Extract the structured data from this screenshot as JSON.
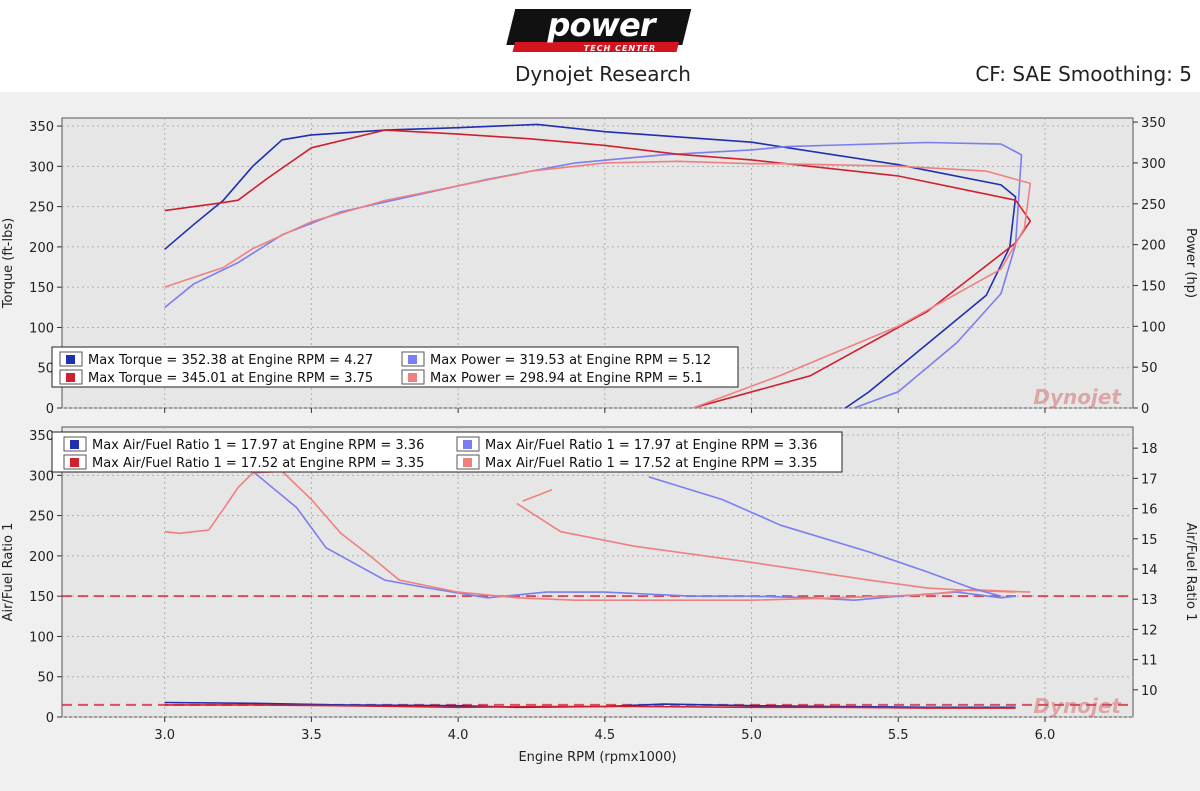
{
  "header": {
    "logo_main": "power",
    "logo_sub": "TECH CENTER",
    "title": "Dynojet Research",
    "cf": "CF: SAE Smoothing: 5",
    "watermark": "Dynojet"
  },
  "colors": {
    "dark_blue": "#1f2fb0",
    "light_blue": "#7a7ef0",
    "dark_red": "#d02030",
    "light_red": "#f08080",
    "panel": "#e6e6e6",
    "background": "#f0f0f0"
  },
  "chart_data": [
    {
      "type": "line",
      "xlabel": "Engine RPM (rpmx1000)",
      "ylabel": "Torque (ft-lbs)",
      "y2label": "Power (hp)",
      "xlim": [
        2.65,
        6.3
      ],
      "ylim": [
        0,
        360
      ],
      "y2lim": [
        0,
        355
      ],
      "xticks": [
        "3.0",
        "3.5",
        "4.0",
        "4.5",
        "5.0",
        "5.5",
        "6.0"
      ],
      "yticks": [
        "0",
        "50",
        "100",
        "150",
        "200",
        "250",
        "300",
        "350"
      ],
      "y2ticks": [
        "0",
        "50",
        "100",
        "150",
        "200",
        "250",
        "300",
        "350"
      ],
      "grid": true,
      "legend_position": "bottom-left",
      "legend": [
        {
          "label": "Max Torque = 352.38 at Engine RPM = 4.27",
          "color": "#1f2fb0"
        },
        {
          "label": "Max Power = 319.53 at Engine RPM = 5.12",
          "color": "#7a7ef0"
        },
        {
          "label": "Max Torque = 345.01 at Engine RPM = 3.75",
          "color": "#d02030"
        },
        {
          "label": "Max Power = 298.94 at Engine RPM = 5.1",
          "color": "#f08080"
        }
      ],
      "series": [
        {
          "axis": "left",
          "color": "#1f2fb0",
          "x": [
            3.0,
            3.1,
            3.2,
            3.3,
            3.4,
            3.5,
            3.75,
            4.0,
            4.27,
            4.5,
            5.0,
            5.5,
            5.85,
            5.9,
            5.88,
            5.8,
            5.6,
            5.4,
            5.32
          ],
          "y": [
            197,
            228,
            258,
            300,
            333,
            339,
            345,
            348,
            352,
            343,
            330,
            302,
            277,
            262,
            200,
            140,
            80,
            20,
            0
          ]
        },
        {
          "axis": "right",
          "color": "#7a7ef0",
          "x": [
            3.0,
            3.1,
            3.25,
            3.4,
            3.6,
            3.85,
            4.1,
            4.4,
            4.7,
            5.0,
            5.12,
            5.3,
            5.6,
            5.85,
            5.92,
            5.9,
            5.85,
            5.7,
            5.5,
            5.35
          ],
          "y": [
            123,
            152,
            178,
            212,
            240,
            260,
            280,
            300,
            310,
            316,
            320,
            322,
            325,
            323,
            310,
            200,
            140,
            80,
            20,
            0
          ]
        },
        {
          "axis": "left",
          "color": "#d02030",
          "x": [
            3.0,
            3.1,
            3.2,
            3.25,
            3.35,
            3.5,
            3.75,
            4.0,
            4.25,
            4.5,
            4.75,
            5.0,
            5.5,
            5.9,
            5.95,
            5.9,
            5.6,
            5.2,
            4.8
          ],
          "y": [
            245,
            250,
            255,
            258,
            285,
            323,
            345,
            340,
            334,
            326,
            315,
            308,
            288,
            258,
            232,
            205,
            120,
            40,
            0
          ]
        },
        {
          "axis": "right",
          "color": "#f08080",
          "x": [
            3.0,
            3.1,
            3.2,
            3.3,
            3.5,
            3.75,
            4.0,
            4.25,
            4.5,
            4.75,
            5.0,
            5.1,
            5.5,
            5.8,
            5.95,
            5.93,
            5.85,
            5.5,
            5.1,
            4.8
          ],
          "y": [
            148,
            160,
            172,
            195,
            228,
            254,
            272,
            290,
            300,
            302,
            299,
            299,
            296,
            290,
            275,
            220,
            170,
            100,
            40,
            0
          ]
        }
      ]
    },
    {
      "type": "line",
      "xlabel": "Engine RPM (rpmx1000)",
      "ylabel": "Air/Fuel Ratio 1",
      "y2label": "Air/Fuel Ratio 1",
      "xlim": [
        2.65,
        6.3
      ],
      "ylim": [
        0,
        360
      ],
      "y2lim": [
        9.1,
        18.7
      ],
      "xticks": [
        "3.0",
        "3.5",
        "4.0",
        "4.5",
        "5.0",
        "5.5",
        "6.0"
      ],
      "yticks": [
        "0",
        "50",
        "100",
        "150",
        "200",
        "250",
        "300",
        "350"
      ],
      "y2ticks": [
        "10",
        "11",
        "12",
        "13",
        "14",
        "15",
        "16",
        "17",
        "18"
      ],
      "grid": true,
      "legend_position": "top-left",
      "reference_lines": [
        {
          "axis": "right",
          "value": 13.1,
          "color": "#d02030",
          "style": "dashed"
        },
        {
          "axis": "right",
          "value": 9.5,
          "color": "#d02030",
          "style": "dashed"
        }
      ],
      "legend": [
        {
          "label": "Max Air/Fuel Ratio 1 = 17.97 at Engine RPM = 3.36",
          "color": "#1f2fb0"
        },
        {
          "label": "Max Air/Fuel Ratio 1 = 17.97 at Engine RPM = 3.36",
          "color": "#7a7ef0"
        },
        {
          "label": "Max Air/Fuel Ratio 1 = 17.52 at Engine RPM = 3.35",
          "color": "#d02030"
        },
        {
          "label": "Max Air/Fuel Ratio 1 = 17.52 at Engine RPM = 3.35",
          "color": "#f08080"
        }
      ],
      "series": [
        {
          "axis": "left",
          "color": "#7a7ef0",
          "x": [
            3.3,
            3.45,
            3.55,
            3.65,
            3.75,
            3.9,
            4.1,
            4.3,
            4.5,
            4.8,
            5.0,
            5.2,
            5.35,
            5.5,
            5.7,
            5.85,
            5.9
          ],
          "y": [
            305,
            260,
            210,
            190,
            170,
            160,
            148,
            155,
            155,
            150,
            150,
            148,
            145,
            150,
            155,
            148,
            150
          ]
        },
        {
          "axis": "left",
          "color": "#f08080",
          "x": [
            3.0,
            3.05,
            3.15,
            3.2,
            3.25,
            3.3,
            3.4,
            3.5,
            3.6,
            3.7,
            3.8,
            4.0,
            4.2,
            4.4,
            4.6,
            4.8,
            5.0,
            5.3,
            5.6,
            5.75,
            5.95
          ],
          "y": [
            230,
            228,
            232,
            258,
            285,
            303,
            305,
            270,
            228,
            200,
            170,
            155,
            148,
            145,
            145,
            145,
            145,
            148,
            152,
            158,
            155
          ]
        },
        {
          "axis": "left",
          "color": "#f08080",
          "x": [
            4.2,
            4.35,
            4.6,
            5.0,
            5.4,
            5.6,
            5.75,
            5.9
          ],
          "y": [
            265,
            230,
            212,
            192,
            170,
            160,
            157,
            155
          ]
        },
        {
          "axis": "left",
          "color": "#f08080",
          "x": [
            4.22,
            4.32
          ],
          "y": [
            268,
            282
          ]
        },
        {
          "axis": "left",
          "color": "#7a7ef0",
          "x": [
            4.65,
            4.9,
            5.1,
            5.4,
            5.6,
            5.75,
            5.85
          ],
          "y": [
            298,
            270,
            238,
            205,
            180,
            160,
            150
          ]
        },
        {
          "axis": "left",
          "color": "#1f2fb0",
          "x": [
            3.0,
            3.3,
            3.6,
            4.0,
            4.2,
            4.5,
            4.7,
            5.0,
            5.3,
            5.6,
            5.9
          ],
          "y": [
            18,
            17,
            15,
            14,
            12,
            13,
            16,
            14,
            13,
            12,
            12
          ]
        },
        {
          "axis": "left",
          "color": "#d02030",
          "x": [
            3.0,
            3.3,
            3.6,
            4.0,
            4.3,
            4.6,
            5.0,
            5.3,
            5.6,
            5.9
          ],
          "y": [
            15,
            15,
            14,
            12,
            13,
            13,
            12,
            12,
            11,
            11
          ]
        }
      ]
    }
  ]
}
